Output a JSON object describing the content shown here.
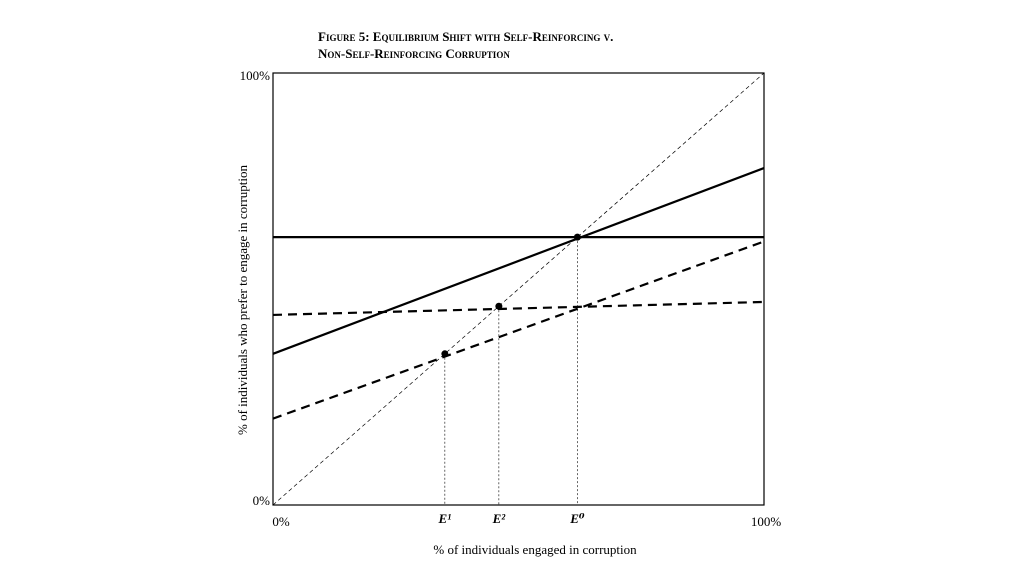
{
  "chart_data": {
    "type": "line",
    "title": [
      "Figure 5: Equilibrium Shift with Self-Reinforcing v.",
      "Non-Self-Reinforcing Corruption"
    ],
    "xlabel": "% of individuals engaged in corruption",
    "ylabel": "% of individuals who prefer to engage in corruption",
    "xlim": [
      0,
      100
    ],
    "ylim": [
      0,
      100
    ],
    "xticks": [
      {
        "value": 0,
        "label": "0%"
      },
      {
        "value": 100,
        "label": "100%"
      }
    ],
    "yticks": [
      {
        "value": 0,
        "label": "0%"
      },
      {
        "value": 100,
        "label": "100%"
      }
    ],
    "series": [
      {
        "color": "#000000",
        "style": "thin-dashed",
        "x": [
          0,
          100
        ],
        "values": [
          0,
          100
        ]
      },
      {
        "color": "#000000",
        "style": "solid",
        "x": [
          0,
          100
        ],
        "values": [
          62,
          62
        ]
      },
      {
        "color": "#000000",
        "style": "solid",
        "x": [
          0,
          100
        ],
        "values": [
          35,
          78
        ]
      },
      {
        "color": "#000000",
        "style": "dashed",
        "x": [
          0,
          100
        ],
        "values": [
          44,
          47
        ]
      },
      {
        "color": "#000000",
        "style": "dashed",
        "x": [
          0,
          100
        ],
        "values": [
          20,
          61
        ]
      }
    ],
    "points": {
      "color": "#000000",
      "x": [
        35,
        46,
        62
      ],
      "values": [
        35,
        46,
        62
      ],
      "labels": [
        "E¹",
        "E²",
        "E⁰"
      ]
    }
  }
}
